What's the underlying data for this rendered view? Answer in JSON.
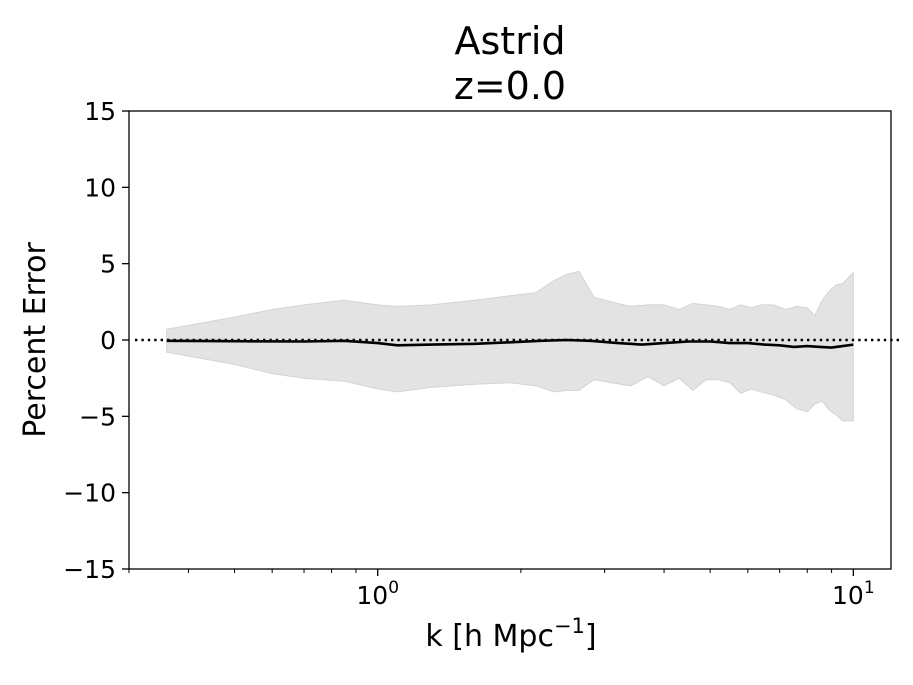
{
  "chart_data": {
    "type": "line",
    "title": "Astrid",
    "subtitle": "z=0.0",
    "xlabel": "k [h Mpc",
    "xlabel_sup": "−1",
    "xlabel_suffix": "]",
    "ylabel": "Percent Error",
    "xscale": "log",
    "xlim": [
      0.3,
      12
    ],
    "ylim": [
      -15,
      15
    ],
    "yticks": [
      {
        "value": 15,
        "label": "15"
      },
      {
        "value": 10,
        "label": "10"
      },
      {
        "value": 5,
        "label": "5"
      },
      {
        "value": 0,
        "label": "0"
      },
      {
        "value": -5,
        "label": "−5"
      },
      {
        "value": -10,
        "label": "−10"
      },
      {
        "value": -15,
        "label": "−15"
      }
    ],
    "xticks": [
      {
        "value": 1,
        "base": "10",
        "exp": "0"
      },
      {
        "value": 10,
        "base": "10",
        "exp": "1"
      }
    ],
    "grid": false,
    "reference_line": {
      "y": 0,
      "style": "dotted",
      "color": "#000000"
    },
    "mean_line": {
      "color": "#000000",
      "x": [
        0.36,
        0.5,
        0.7,
        0.85,
        1.0,
        1.1,
        1.3,
        1.6,
        1.9,
        2.2,
        2.5,
        2.8,
        3.2,
        3.6,
        4.0,
        4.5,
        5.0,
        5.5,
        6.0,
        6.5,
        7.0,
        7.5,
        8.0,
        8.5,
        9.0,
        9.5,
        10.0
      ],
      "y": [
        -0.05,
        -0.08,
        -0.1,
        -0.05,
        -0.2,
        -0.35,
        -0.3,
        -0.25,
        -0.15,
        -0.05,
        0.0,
        -0.05,
        -0.2,
        -0.3,
        -0.2,
        -0.1,
        -0.1,
        -0.2,
        -0.2,
        -0.3,
        -0.35,
        -0.45,
        -0.4,
        -0.45,
        -0.5,
        -0.4,
        -0.3
      ]
    },
    "error_band": {
      "color": "#e3e3e3",
      "x": [
        0.36,
        0.5,
        0.6,
        0.7,
        0.85,
        1.0,
        1.1,
        1.3,
        1.6,
        1.9,
        2.15,
        2.35,
        2.5,
        2.65,
        2.85,
        3.1,
        3.4,
        3.7,
        4.0,
        4.3,
        4.6,
        4.9,
        5.2,
        5.5,
        5.8,
        6.1,
        6.4,
        6.8,
        7.2,
        7.6,
        8.0,
        8.3,
        8.6,
        8.9,
        9.2,
        9.5,
        10.0
      ],
      "upper": [
        0.7,
        1.5,
        2.0,
        2.3,
        2.6,
        2.3,
        2.2,
        2.3,
        2.6,
        2.9,
        3.1,
        3.9,
        4.3,
        4.5,
        2.8,
        2.5,
        2.2,
        2.3,
        2.3,
        2.0,
        2.4,
        2.3,
        2.2,
        2.0,
        2.3,
        2.1,
        2.3,
        2.3,
        2.0,
        2.2,
        2.1,
        1.6,
        2.6,
        3.2,
        3.6,
        3.7,
        4.4
      ],
      "lower": [
        -0.8,
        -1.6,
        -2.2,
        -2.5,
        -2.7,
        -3.2,
        -3.4,
        -3.1,
        -2.9,
        -2.8,
        -3.0,
        -3.4,
        -3.3,
        -3.3,
        -2.6,
        -2.8,
        -3.0,
        -2.4,
        -3.0,
        -2.5,
        -3.3,
        -2.6,
        -2.6,
        -2.8,
        -3.5,
        -3.2,
        -3.4,
        -3.6,
        -3.9,
        -4.5,
        -4.7,
        -4.2,
        -4.0,
        -4.6,
        -4.9,
        -5.3,
        -5.3
      ]
    }
  }
}
